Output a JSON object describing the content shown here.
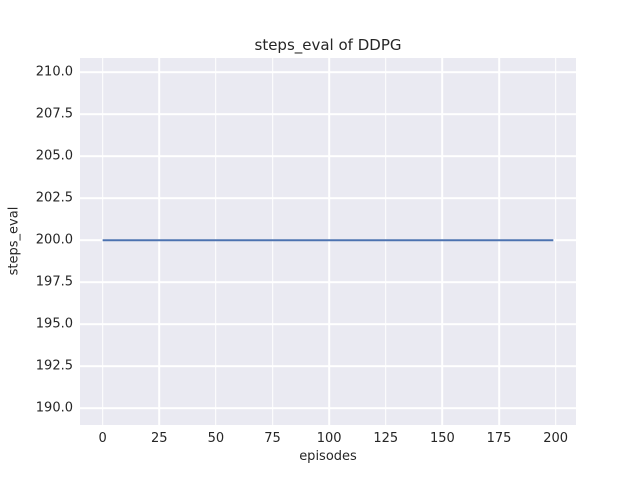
{
  "chart_data": {
    "type": "line",
    "title": "steps_eval of DDPG",
    "xlabel": "episodes",
    "ylabel": "steps_eval",
    "xlim": [
      -10,
      209
    ],
    "ylim": [
      189,
      210.85
    ],
    "xticks": [
      0,
      25,
      50,
      75,
      100,
      125,
      150,
      175,
      200
    ],
    "xtick_labels": [
      "0",
      "25",
      "50",
      "75",
      "100",
      "125",
      "150",
      "175",
      "200"
    ],
    "yticks": [
      190.0,
      192.5,
      195.0,
      197.5,
      200.0,
      202.5,
      205.0,
      207.5,
      210.0
    ],
    "ytick_labels": [
      "190.0",
      "192.5",
      "195.0",
      "197.5",
      "200.0",
      "202.5",
      "205.0",
      "207.5",
      "210.0"
    ],
    "grid": true,
    "legend_position": "none",
    "series": [
      {
        "name": "DDPG steps_eval",
        "x": [
          0,
          199
        ],
        "y": [
          200,
          200
        ]
      }
    ],
    "colors": {
      "figure_background": "#ffffff",
      "axes_background": "#eaeaf2",
      "grid_color": "#ffffff",
      "line_color": "#4c72b0",
      "text_color": "#262626"
    },
    "line_width": 2
  }
}
